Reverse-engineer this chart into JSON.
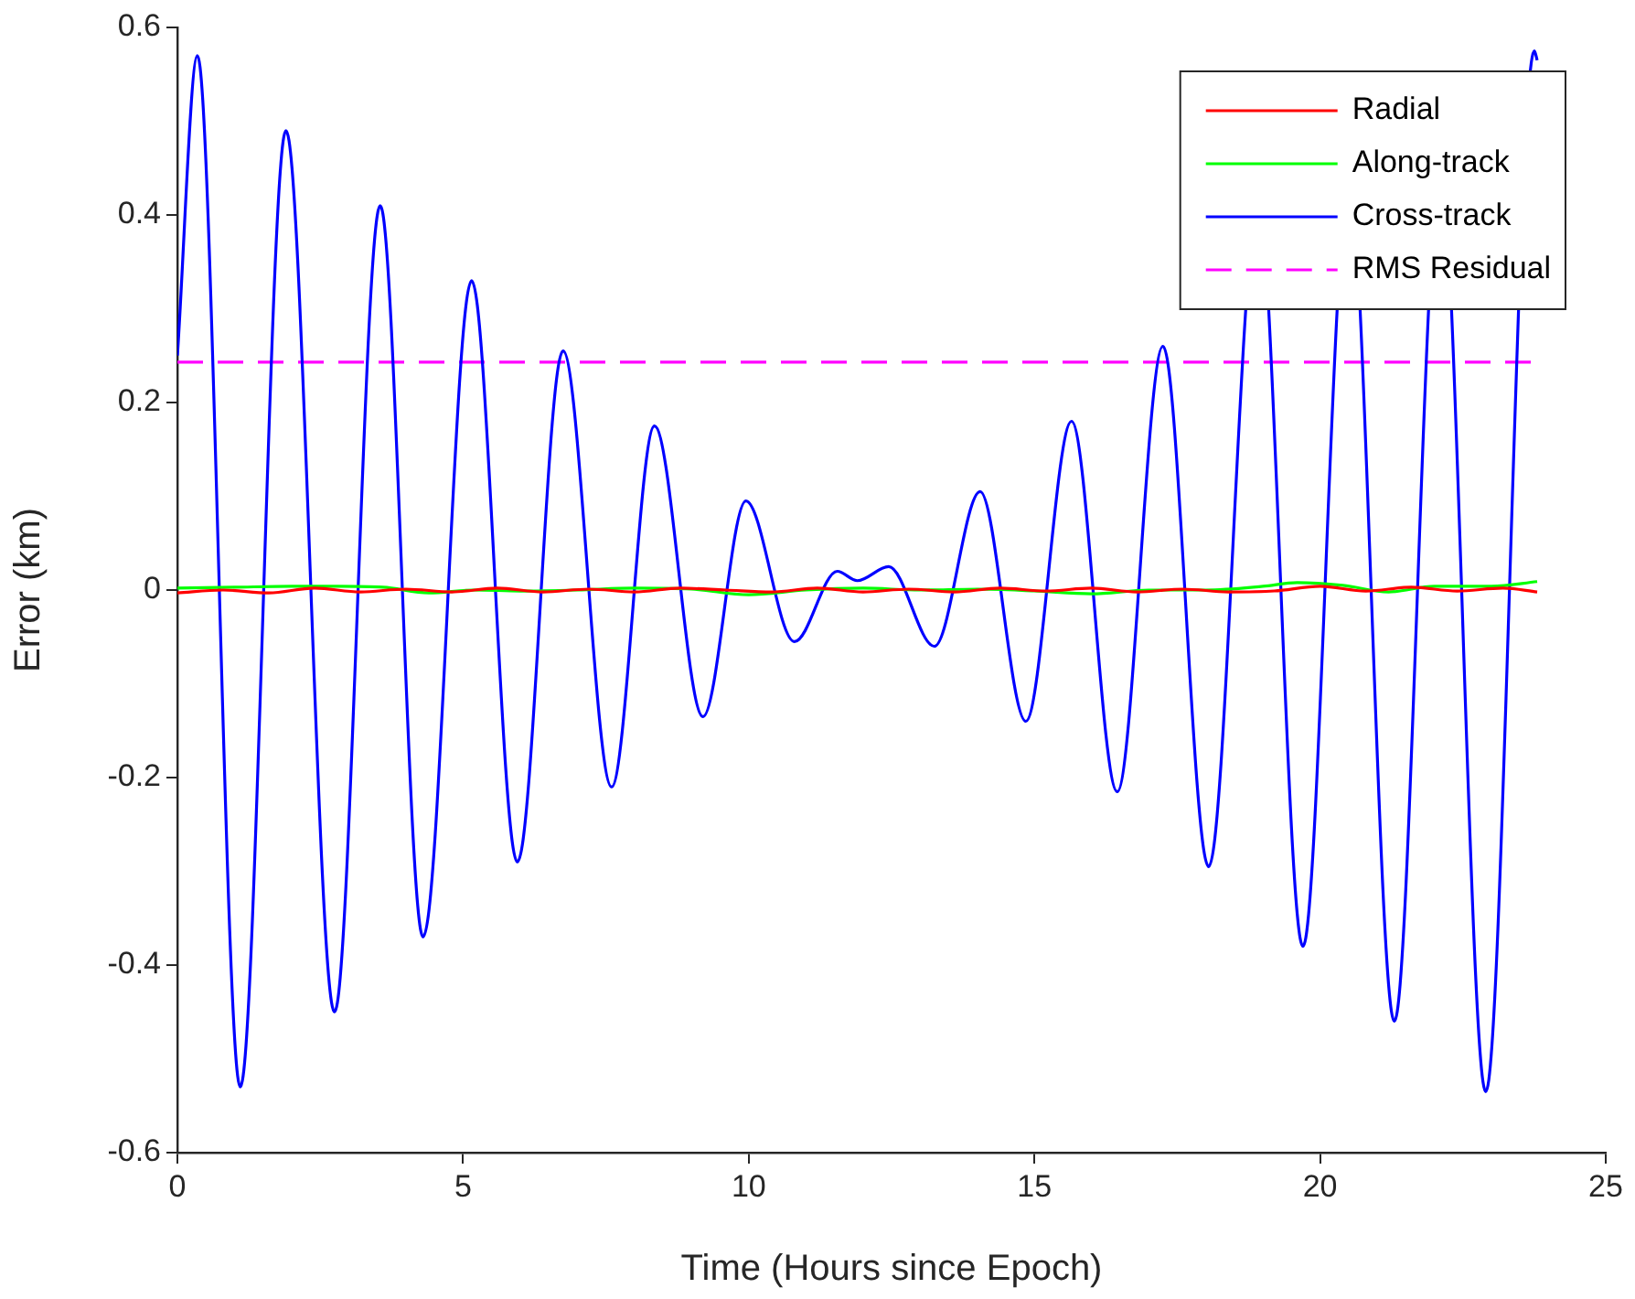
{
  "chart_data": {
    "type": "line",
    "xlabel": "Time (Hours since Epoch)",
    "ylabel": "Error (km)",
    "xlim": [
      0,
      25
    ],
    "xticks": [
      0,
      5,
      10,
      15,
      20,
      25
    ],
    "ylim": [
      -0.6,
      0.6
    ],
    "yticks": [
      -0.6,
      -0.4,
      -0.2,
      0,
      0.2,
      0.4,
      0.6
    ],
    "grid": false,
    "legend": "top right",
    "marker": "none",
    "series": [
      {
        "name": "Radial",
        "color": "#ff0000",
        "line_style": "solid",
        "x": [
          0,
          0.8,
          1.6,
          2.4,
          3.2,
          4,
          4.8,
          5.6,
          6.4,
          7.2,
          8,
          8.8,
          9.6,
          10.4,
          11.2,
          12,
          12.8,
          13.6,
          14.4,
          15.2,
          16,
          16.8,
          17.6,
          18.4,
          19.2,
          20,
          20.8,
          21.6,
          22.4,
          23.2,
          23.8
        ],
        "values": [
          -0.003,
          0,
          -0.003,
          0.002,
          -0.002,
          0.001,
          -0.002,
          0.002,
          -0.002,
          0.001,
          -0.002,
          0.002,
          0,
          -0.002,
          0.002,
          -0.002,
          0.001,
          -0.002,
          0.002,
          -0.001,
          0.002,
          -0.002,
          0.001,
          -0.002,
          -0.001,
          0.004,
          -0.001,
          0.003,
          -0.001,
          0.002,
          -0.002
        ]
      },
      {
        "name": "Along-track",
        "color": "#00ff00",
        "line_style": "solid",
        "x": [
          0,
          1,
          2,
          2.8,
          3.6,
          4.4,
          5.2,
          6,
          7,
          8,
          9,
          10,
          11,
          12,
          13,
          14,
          15,
          16,
          17,
          18,
          19,
          19.6,
          20.4,
          21.2,
          22,
          23,
          23.8
        ],
        "values": [
          0.002,
          0.003,
          0.004,
          0.004,
          0.003,
          -0.003,
          0,
          -0.001,
          0,
          0.002,
          0.001,
          -0.005,
          0,
          0.002,
          0,
          0.001,
          -0.001,
          -0.004,
          0,
          0,
          0.004,
          0.008,
          0.005,
          -0.002,
          0.004,
          0.004,
          0.009
        ]
      },
      {
        "name": "Cross-track",
        "color": "#0000ff",
        "line_style": "solid",
        "x": [
          0,
          0.35,
          1.1,
          1.9,
          2.75,
          3.55,
          4.3,
          5.15,
          5.95,
          6.75,
          7.6,
          8.35,
          9.2,
          9.95,
          10.8,
          11.55,
          11.9,
          12.45,
          13.25,
          14.05,
          14.85,
          15.65,
          16.45,
          17.25,
          18.05,
          18.7,
          18.9,
          19.1,
          19.7,
          20.3,
          20.5,
          20.7,
          21.3,
          21.9,
          22.1,
          22.3,
          22.9,
          23.75,
          23.8
        ],
        "values": [
          0.25,
          0.57,
          -0.53,
          0.49,
          -0.45,
          0.41,
          -0.37,
          0.33,
          -0.29,
          0.255,
          -0.21,
          0.175,
          -0.135,
          0.095,
          -0.055,
          0.02,
          0.01,
          0.025,
          -0.06,
          0.105,
          -0.14,
          0.18,
          -0.215,
          0.26,
          -0.295,
          0.3,
          null,
          0.3,
          -0.38,
          0.3,
          null,
          0.3,
          -0.46,
          0.3,
          null,
          0.3,
          -0.535,
          0.575,
          0.565
        ]
      },
      {
        "name": "RMS Residual",
        "color": "#ff00ff",
        "line_style": "dashed",
        "x": [
          0,
          23.8
        ],
        "values": [
          0.243,
          0.243
        ]
      }
    ]
  }
}
